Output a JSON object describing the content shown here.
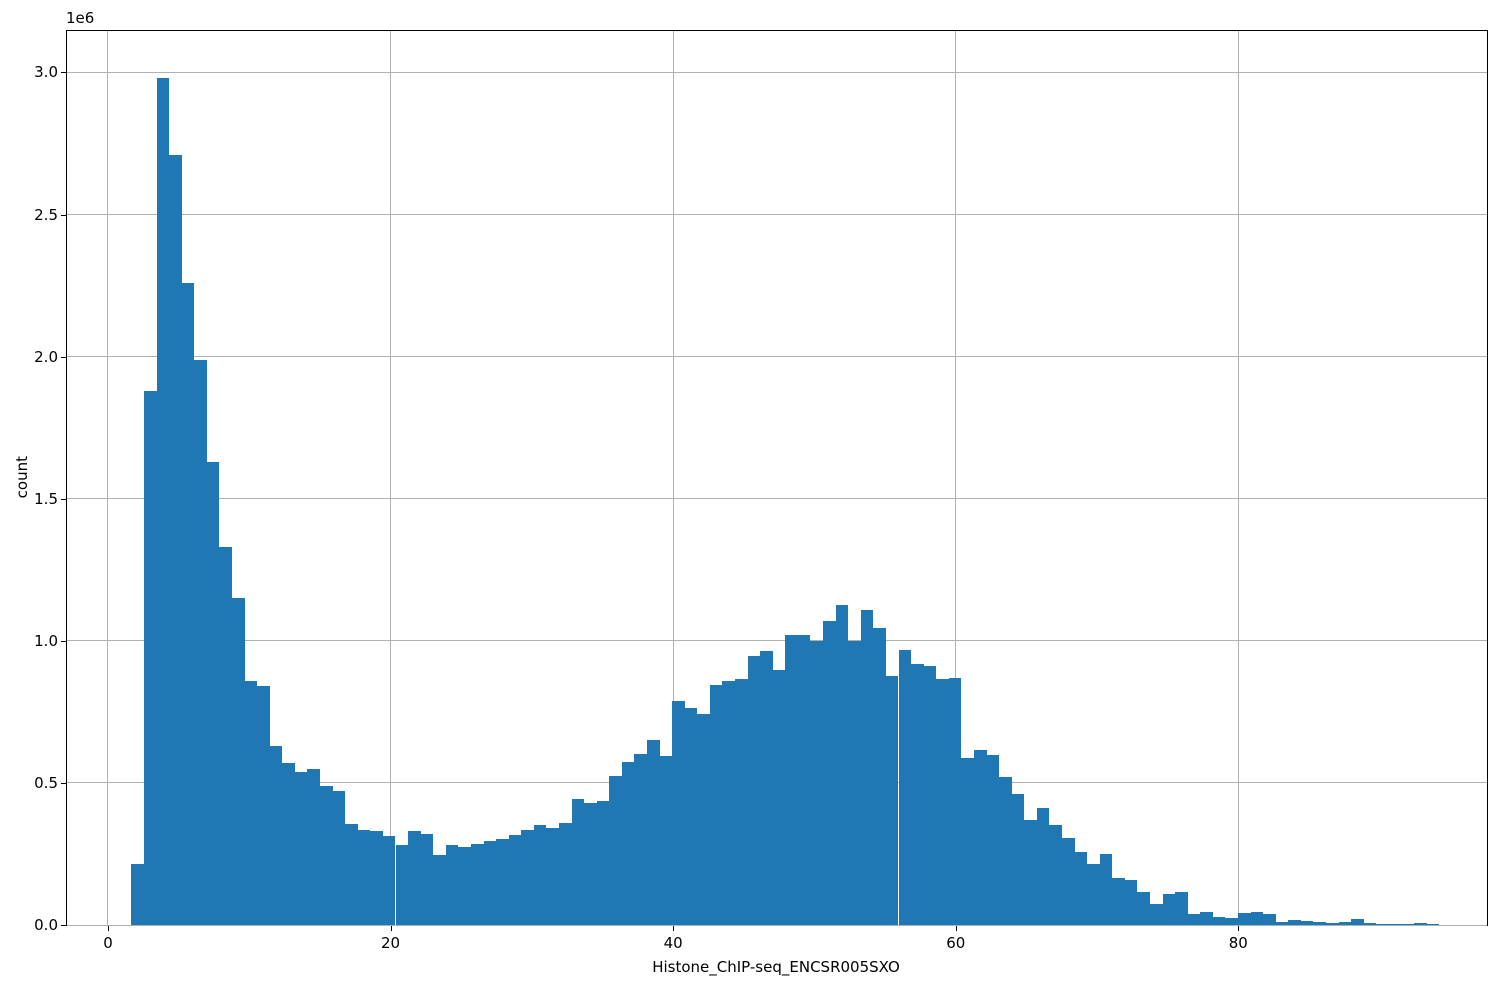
{
  "figure": {
    "background": "#ffffff"
  },
  "chart_data": {
    "type": "bar",
    "subtype": "histogram",
    "title": "",
    "xlabel": "Histone_ChIP-seq_ENCSR005SXO",
    "ylabel": "count",
    "y_offset_text": "1e6",
    "bar_color": "#1f77b4",
    "grid": true,
    "grid_color": "#b0b0b0",
    "legend": "none",
    "xlim": [
      -2.9,
      97.6
    ],
    "ylim": [
      0,
      3146000
    ],
    "x_ticks": [
      0,
      20,
      40,
      60,
      80
    ],
    "y_ticks": [
      0,
      500000,
      1000000,
      1500000,
      2000000,
      2500000,
      3000000
    ],
    "y_tick_labels": [
      "0.0",
      "0.5",
      "1.0",
      "1.5",
      "2.0",
      "2.5",
      "3.0"
    ],
    "bin_start": 1.66,
    "bin_width": 0.89,
    "counts": [
      215000,
      1880000,
      2980000,
      2710000,
      2260000,
      1990000,
      1630000,
      1330000,
      1150000,
      860000,
      840000,
      630000,
      570000,
      540000,
      550000,
      490000,
      470000,
      355000,
      335000,
      330000,
      313000,
      280000,
      330000,
      320000,
      247000,
      283000,
      276000,
      286000,
      297000,
      304000,
      318000,
      336000,
      353000,
      340000,
      360000,
      443000,
      430000,
      435000,
      525000,
      574000,
      600000,
      650000,
      594000,
      790000,
      764000,
      743000,
      845000,
      858000,
      866000,
      947000,
      963000,
      898000,
      1020000,
      1020000,
      1000000,
      1070000,
      1125000,
      1000000,
      1110000,
      1045000,
      877000,
      968000,
      920000,
      913000,
      864000,
      868000,
      588000,
      615000,
      598000,
      520000,
      462000,
      370000,
      410000,
      352000,
      307000,
      258000,
      214000,
      250000,
      167000,
      160000,
      116000,
      73000,
      110000,
      116000,
      38000,
      47000,
      28000,
      25000,
      43000,
      47000,
      40000,
      12000,
      16000,
      14000,
      10000,
      7000,
      12000,
      20000,
      6000,
      4000,
      3000,
      3000,
      8000,
      2000
    ]
  }
}
